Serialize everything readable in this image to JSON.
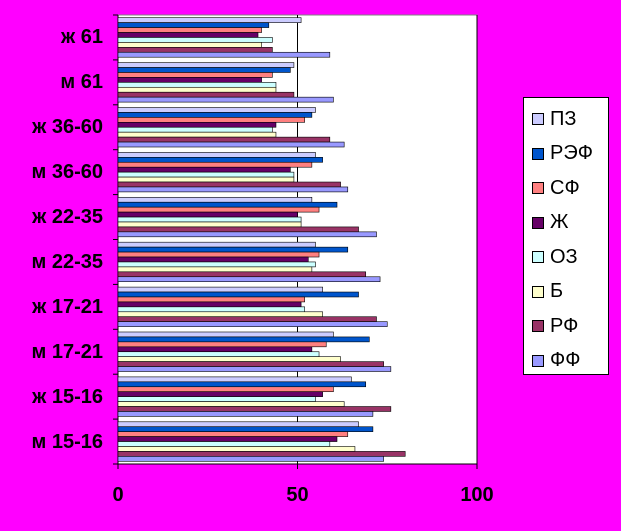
{
  "chart_data": {
    "type": "bar",
    "orientation": "horizontal",
    "categories": [
      "ж 61",
      "м 61",
      "ж 36-60",
      "м 36-60",
      "ж 22-35",
      "м 22-35",
      "ж 17-21",
      "м 17-21",
      "ж 15-16",
      "м 15-16"
    ],
    "series": [
      {
        "name": "ПЗ",
        "color": "#ccccff",
        "values": [
          51,
          49,
          55,
          55,
          54,
          55,
          57,
          60,
          65,
          67
        ]
      },
      {
        "name": "РЭФ",
        "color": "#0055cc",
        "values": [
          42,
          48,
          54,
          57,
          61,
          64,
          67,
          70,
          69,
          71
        ]
      },
      {
        "name": "СФ",
        "color": "#ff8080",
        "values": [
          40,
          43,
          52,
          54,
          56,
          56,
          52,
          58,
          60,
          64
        ]
      },
      {
        "name": "Ж",
        "color": "#660066",
        "values": [
          39,
          40,
          44,
          48,
          50,
          53,
          51,
          54,
          57,
          61
        ]
      },
      {
        "name": "ОЗ",
        "color": "#ccffff",
        "values": [
          43,
          44,
          43,
          49,
          51,
          55,
          52,
          56,
          55,
          59
        ]
      },
      {
        "name": "Б",
        "color": "#ffffcc",
        "values": [
          40,
          44,
          44,
          49,
          51,
          54,
          57,
          62,
          63,
          66
        ]
      },
      {
        "name": "РФ",
        "color": "#993366",
        "values": [
          43,
          49,
          59,
          62,
          67,
          69,
          72,
          74,
          76,
          80
        ]
      },
      {
        "name": "ФФ",
        "color": "#9999ff",
        "values": [
          59,
          60,
          63,
          64,
          72,
          73,
          75,
          76,
          71,
          74
        ]
      }
    ],
    "xlim": [
      0,
      100
    ],
    "x_ticks": [
      0,
      50,
      100
    ],
    "grid": "vertical",
    "legend": "right",
    "plot_background": "#ffffff",
    "page_background": "#ff00ff"
  }
}
